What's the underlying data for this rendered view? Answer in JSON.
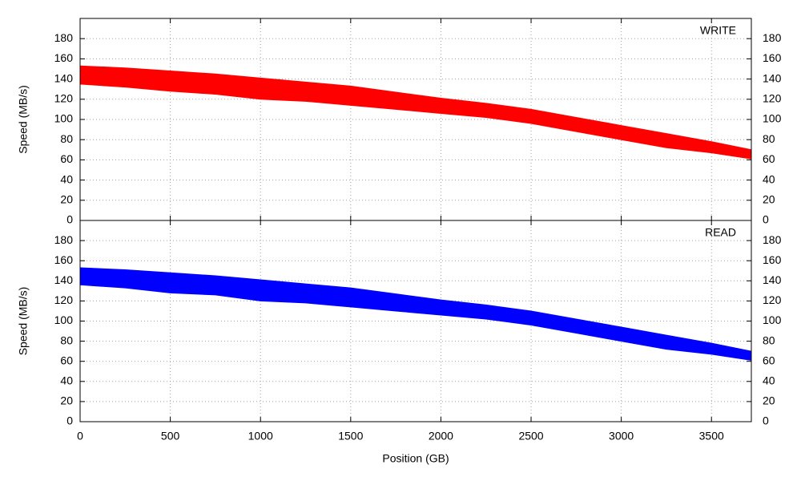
{
  "chart_data": [
    {
      "type": "band",
      "label": "WRITE",
      "color": "#ff0000",
      "ylabel": "Speed (MB/s)",
      "x": [
        0,
        250,
        500,
        750,
        1000,
        1250,
        1500,
        1750,
        2000,
        2250,
        2500,
        2750,
        3000,
        3250,
        3500,
        3721
      ],
      "high": [
        153,
        151,
        148,
        145,
        141,
        137,
        133,
        127,
        121,
        116,
        110,
        102,
        94,
        86,
        78,
        70
      ],
      "low": [
        135,
        132,
        128,
        125,
        120,
        118,
        114,
        110,
        106,
        102,
        96,
        88,
        80,
        72,
        67,
        61
      ],
      "xlim": [
        0,
        3721
      ],
      "xticks": [
        0,
        500,
        1000,
        1500,
        2000,
        2500,
        3000,
        3500
      ],
      "ylim": [
        0,
        200
      ],
      "yticks": [
        0,
        20,
        40,
        60,
        80,
        100,
        120,
        140,
        160,
        180
      ],
      "y2lim": [
        0,
        200
      ],
      "y2ticks": [
        0,
        20,
        40,
        60,
        80,
        100,
        120,
        140,
        160,
        180
      ],
      "grid": true
    },
    {
      "type": "band",
      "label": "READ",
      "color": "#0000ff",
      "ylabel": "Speed (MB/s)",
      "xlabel": "Position (GB)",
      "x": [
        0,
        250,
        500,
        750,
        1000,
        1250,
        1500,
        1750,
        2000,
        2250,
        2500,
        2750,
        3000,
        3250,
        3500,
        3721
      ],
      "high": [
        153,
        151,
        148,
        145,
        141,
        137,
        133,
        127,
        121,
        116,
        110,
        102,
        94,
        86,
        78,
        70
      ],
      "low": [
        136,
        133,
        128,
        126,
        120,
        118,
        114,
        110,
        106,
        102,
        96,
        88,
        80,
        72,
        67,
        61
      ],
      "xlim": [
        0,
        3721
      ],
      "xticks": [
        0,
        500,
        1000,
        1500,
        2000,
        2500,
        3000,
        3500
      ],
      "ylim": [
        0,
        200
      ],
      "yticks": [
        0,
        20,
        40,
        60,
        80,
        100,
        120,
        140,
        160,
        180
      ],
      "y2lim": [
        0,
        200
      ],
      "y2ticks": [
        0,
        20,
        40,
        60,
        80,
        100,
        120,
        140,
        160,
        180
      ],
      "grid": true
    }
  ]
}
